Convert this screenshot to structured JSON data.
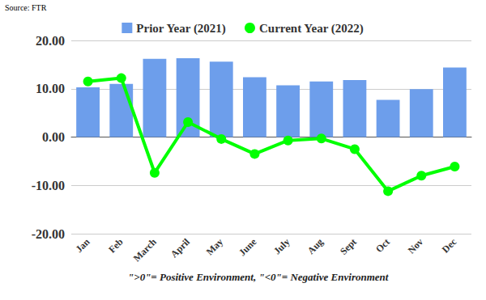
{
  "chart_data": {
    "type": "bar",
    "annotations": [
      "Source: FTR",
      "\">0\"= Positive Environment, \"<0\"= Negative Environment"
    ],
    "categories": [
      "Jan",
      "Feb",
      "March",
      "April",
      "May",
      "June",
      "July",
      "Aug",
      "Sept",
      "Oct",
      "Nov",
      "Dec"
    ],
    "series": [
      {
        "name": "Prior Year (2021)",
        "type": "bar",
        "color": "#6d9eeb",
        "values": [
          10.3,
          11.0,
          16.2,
          16.3,
          15.6,
          12.4,
          10.7,
          11.5,
          11.8,
          7.7,
          9.9,
          14.4
        ]
      },
      {
        "name": "Current Year (2022)",
        "type": "line",
        "color": "#00ff00",
        "marker": "circle",
        "line_style": "solid",
        "values": [
          11.5,
          12.2,
          -7.4,
          3.1,
          -0.4,
          -3.5,
          -0.7,
          -0.3,
          -2.5,
          -11.2,
          -8.0,
          -6.1
        ]
      }
    ],
    "ylim": [
      -20,
      20
    ],
    "yticks": [
      {
        "value": -20,
        "label": "-20.00"
      },
      {
        "value": -10,
        "label": "-10.00"
      },
      {
        "value": 0,
        "label": "0.00"
      },
      {
        "value": 10,
        "label": "10.00"
      },
      {
        "value": 20,
        "label": "20.00"
      }
    ],
    "grid": true,
    "legend": "top"
  }
}
